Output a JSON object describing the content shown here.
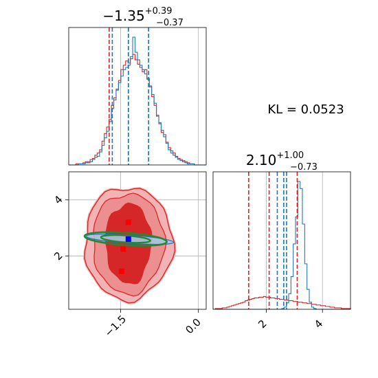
{
  "chart_data": [
    {
      "type": "histogram",
      "panel": "top-left marginal",
      "param_index": 0,
      "title_main": "−1.35",
      "title_sup": "+0.39",
      "title_sub": "−0.37",
      "xlim": [
        -2.5,
        0.15
      ],
      "grid": true,
      "colors": {
        "red": "#d62728",
        "blue": "#1f77b4"
      },
      "quantile_lines": {
        "red": [
          -1.72,
          -1.35,
          -0.96
        ],
        "blue": [
          -1.66,
          -1.35,
          -0.96
        ]
      },
      "series": [
        {
          "name": "",
          "color": "#d62728",
          "values": [
            0,
            0,
            0,
            1,
            1,
            1,
            2,
            3,
            2,
            5,
            6,
            9,
            11,
            14,
            22,
            29,
            35,
            42,
            55,
            62,
            70,
            78,
            88,
            92,
            96,
            94,
            98,
            102,
            97,
            93,
            90,
            86,
            88,
            80,
            72,
            63,
            55,
            45,
            38,
            30,
            28,
            21,
            16,
            13,
            11,
            8,
            6,
            5,
            4,
            3,
            2,
            1,
            1,
            0,
            0,
            0,
            0,
            0
          ]
        },
        {
          "name": "",
          "color": "#1f77b4",
          "values": [
            0,
            0,
            0,
            0,
            1,
            1,
            1,
            2,
            3,
            3,
            5,
            7,
            8,
            12,
            18,
            25,
            31,
            40,
            52,
            60,
            69,
            76,
            82,
            88,
            90,
            92,
            100,
            118,
            104,
            97,
            92,
            88,
            84,
            79,
            73,
            65,
            57,
            46,
            39,
            32,
            26,
            20,
            14,
            11,
            9,
            7,
            5,
            4,
            3,
            2,
            1,
            1,
            1,
            0,
            0,
            0,
            0,
            0
          ]
        }
      ]
    },
    {
      "type": "text",
      "panel": "top-right",
      "text": "KL = 0.0523"
    },
    {
      "type": "scatter-contour",
      "panel": "bottom-left joint",
      "xlim": [
        -2.5,
        0.15
      ],
      "ylim": [
        0.1,
        5.0
      ],
      "xticks": [
        -1.5,
        0.0
      ],
      "xtick_labels": [
        "−1.5",
        "0.0"
      ],
      "yticks": [
        2,
        4
      ],
      "ytick_labels": [
        "2",
        "4"
      ],
      "grid": true,
      "red_square_markers": [
        {
          "x": -1.35,
          "y": 3.2
        },
        {
          "x": -1.45,
          "y": 2.25
        },
        {
          "x": -1.48,
          "y": 1.45
        }
      ],
      "blue_square_markers": [
        {
          "x": -1.35,
          "y": 2.6
        }
      ],
      "red_contour_centre": {
        "x": -1.35,
        "y": 2.45
      },
      "green_ellipse_centre": {
        "x": -1.35,
        "y": 2.6
      },
      "colors": {
        "red_fill_outer": "#f09a9c",
        "red_fill_inner": "#d62728",
        "red_line": "#d62728",
        "blue": "#1f77b4",
        "green": "#228833"
      }
    },
    {
      "type": "histogram",
      "panel": "bottom-right marginal",
      "param_index": 1,
      "title_main": "2.10",
      "title_sup": "+1.00",
      "title_sub": "−0.73",
      "xlim": [
        0.1,
        5.0
      ],
      "xticks": [
        2,
        4
      ],
      "xtick_labels": [
        "2",
        "4"
      ],
      "grid": true,
      "quantile_lines": {
        "red": [
          1.37,
          2.1,
          3.1
        ],
        "blue": [
          2.39,
          2.62,
          2.72
        ]
      },
      "series": [
        {
          "name": "",
          "color": "#d62728",
          "values": [
            0,
            1,
            1,
            1,
            2,
            2,
            3,
            4,
            5,
            6,
            7,
            8,
            9,
            10,
            12,
            13,
            14,
            15,
            16,
            16,
            17,
            17,
            18,
            17,
            17,
            16,
            16,
            15,
            15,
            14,
            14,
            13,
            13,
            12,
            12,
            11,
            11,
            10,
            10,
            9,
            9,
            8,
            8,
            7,
            7,
            6,
            6,
            5,
            5,
            4,
            4,
            3,
            3,
            2,
            2,
            2,
            1,
            1,
            1,
            1
          ]
        },
        {
          "name": "",
          "color": "#1f77b4",
          "values": [
            0,
            0,
            0,
            0,
            0,
            0,
            0,
            0,
            0,
            0,
            0,
            0,
            0,
            0,
            0,
            0,
            0,
            0,
            0,
            0,
            0,
            0,
            0,
            0,
            0,
            0,
            0,
            0,
            0,
            0,
            1,
            3,
            9,
            22,
            46,
            92,
            130,
            180,
            170,
            120,
            64,
            28,
            10,
            3,
            1,
            0,
            0,
            0,
            0,
            0,
            0,
            0,
            0,
            0,
            0,
            0,
            0,
            0,
            0,
            0
          ]
        }
      ]
    }
  ]
}
